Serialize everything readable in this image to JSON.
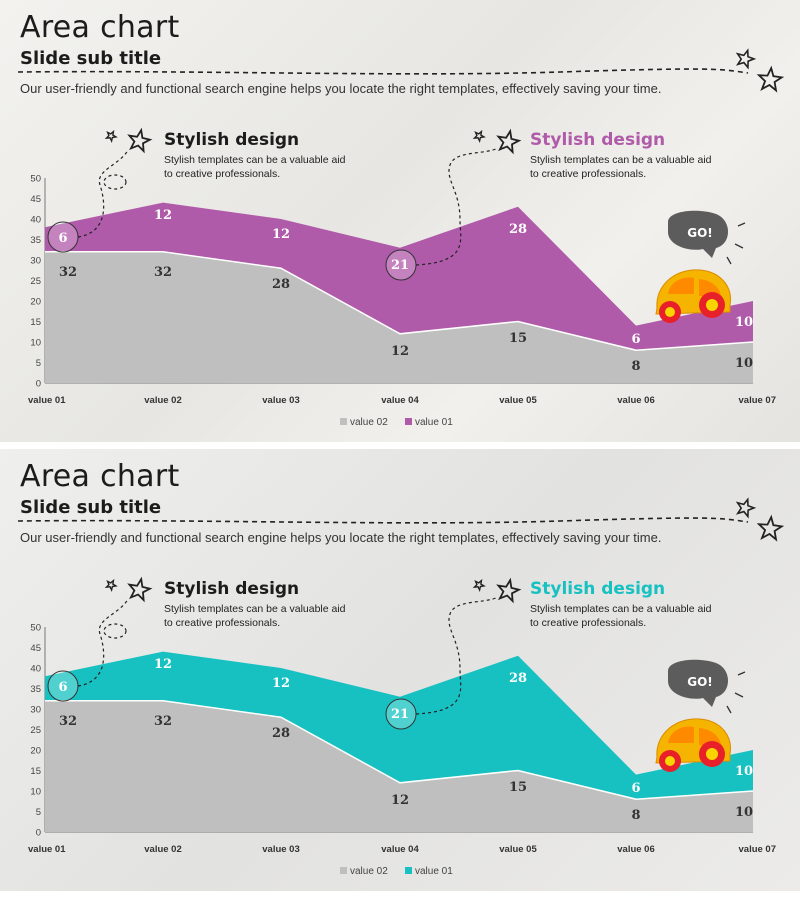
{
  "slides": [
    {
      "title": "Area chart",
      "subtitle": "Slide sub title",
      "description": "Our user-friendly and functional search engine helps you locate the right templates, effectively saving your time.",
      "accent": "#b05aaa",
      "callouts": [
        {
          "heading": "Stylish design",
          "text": "Stylish templates can be a valuable aid to creative professionals."
        },
        {
          "heading": "Stylish design",
          "text": "Stylish templates can be a valuable aid to creative professionals."
        }
      ],
      "go_label": "GO!"
    },
    {
      "title": "Area chart",
      "subtitle": "Slide sub title",
      "description": "Our user-friendly and functional search engine helps you locate the right templates, effectively saving your time.",
      "accent": "#17c1c1",
      "callouts": [
        {
          "heading": "Stylish design",
          "text": "Stylish templates can be a valuable aid to creative professionals."
        },
        {
          "heading": "Stylish design",
          "text": "Stylish templates can be a valuable aid to creative professionals."
        }
      ],
      "go_label": "GO!"
    }
  ],
  "chart_data": [
    {
      "type": "area",
      "stacked": true,
      "categories": [
        "value 01",
        "value 02",
        "value 03",
        "value 04",
        "value 05",
        "value 06",
        "value 07"
      ],
      "series": [
        {
          "name": "value 02",
          "values": [
            32,
            32,
            28,
            12,
            15,
            8,
            10
          ],
          "color": "#c0bfbf"
        },
        {
          "name": "value 01",
          "values": [
            6,
            12,
            12,
            21,
            28,
            6,
            10
          ],
          "color": "#b05aaa"
        }
      ],
      "ylim": [
        0,
        50
      ],
      "yticks": [
        0,
        5,
        10,
        15,
        20,
        25,
        30,
        35,
        40,
        45,
        50
      ],
      "legend": "bottom"
    },
    {
      "type": "area",
      "stacked": true,
      "categories": [
        "value 01",
        "value 02",
        "value 03",
        "value 04",
        "value 05",
        "value 06",
        "value 07"
      ],
      "series": [
        {
          "name": "value 02",
          "values": [
            32,
            32,
            28,
            12,
            15,
            8,
            10
          ],
          "color": "#c0bfbf"
        },
        {
          "name": "value 01",
          "values": [
            6,
            12,
            12,
            21,
            28,
            6,
            10
          ],
          "color": "#17c1c1"
        }
      ],
      "ylim": [
        0,
        50
      ],
      "yticks": [
        0,
        5,
        10,
        15,
        20,
        25,
        30,
        35,
        40,
        45,
        50
      ],
      "legend": "bottom"
    }
  ]
}
